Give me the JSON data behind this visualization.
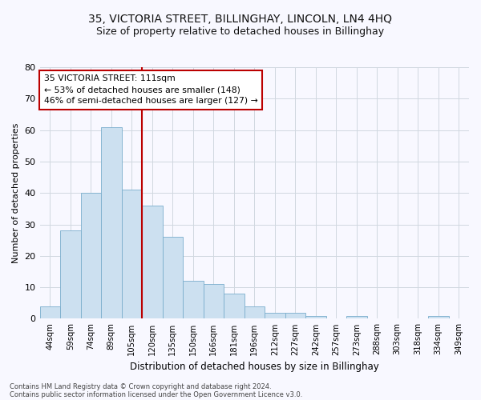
{
  "title": "35, VICTORIA STREET, BILLINGHAY, LINCOLN, LN4 4HQ",
  "subtitle": "Size of property relative to detached houses in Billinghay",
  "xlabel": "Distribution of detached houses by size in Billinghay",
  "ylabel": "Number of detached properties",
  "categories": [
    "44sqm",
    "59sqm",
    "74sqm",
    "89sqm",
    "105sqm",
    "120sqm",
    "135sqm",
    "150sqm",
    "166sqm",
    "181sqm",
    "196sqm",
    "212sqm",
    "227sqm",
    "242sqm",
    "257sqm",
    "273sqm",
    "288sqm",
    "303sqm",
    "318sqm",
    "334sqm",
    "349sqm"
  ],
  "values": [
    4,
    28,
    40,
    61,
    41,
    36,
    26,
    12,
    11,
    8,
    4,
    2,
    2,
    1,
    0,
    1,
    0,
    0,
    0,
    1,
    0
  ],
  "bar_color": "#cce0f0",
  "bar_edge_color": "#7aaecc",
  "grid_color": "#d0d8e0",
  "vline_x_index": 4,
  "vline_color": "#bb0000",
  "annotation_line1": "35 VICTORIA STREET: 111sqm",
  "annotation_line2": "← 53% of detached houses are smaller (148)",
  "annotation_line3": "46% of semi-detached houses are larger (127) →",
  "annotation_box_color": "#ffffff",
  "annotation_box_edge": "#bb0000",
  "ylim": [
    0,
    80
  ],
  "yticks": [
    0,
    10,
    20,
    30,
    40,
    50,
    60,
    70,
    80
  ],
  "footer1": "Contains HM Land Registry data © Crown copyright and database right 2024.",
  "footer2": "Contains public sector information licensed under the Open Government Licence v3.0.",
  "bg_color": "#f8f8ff",
  "title_fontsize": 10,
  "subtitle_fontsize": 9
}
